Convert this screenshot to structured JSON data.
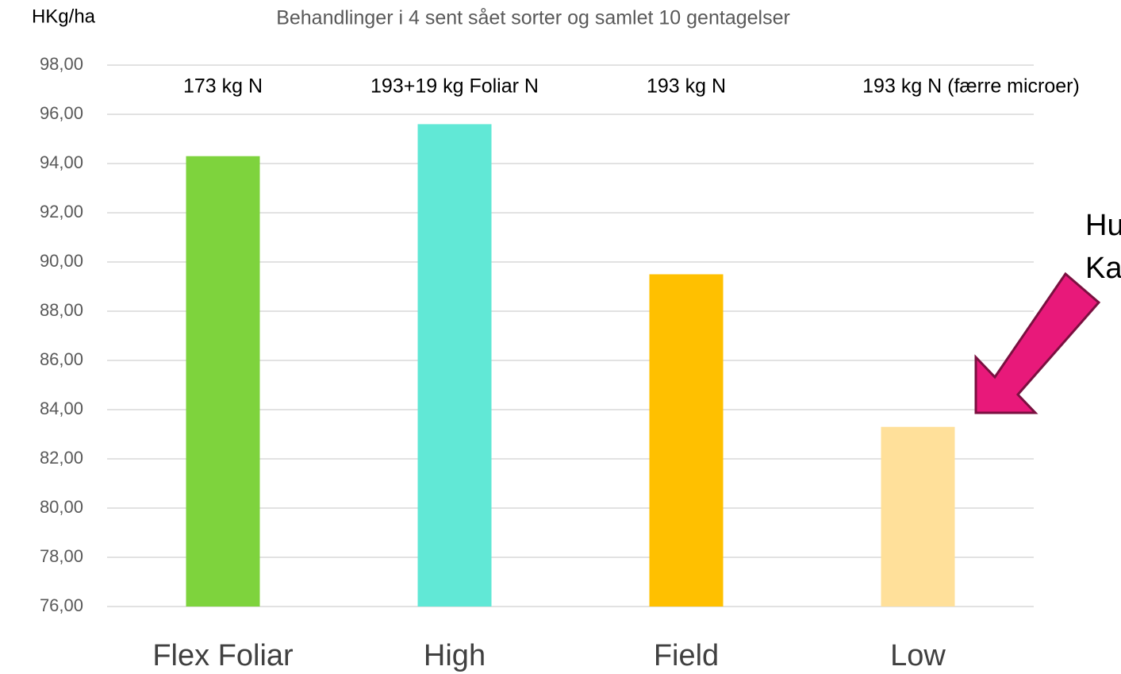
{
  "chart_data": {
    "type": "bar",
    "title": "Behandlinger i 4 sent sået sorter og samlet 10 gentagelser",
    "y_axis_label": "HKg/ha",
    "categories": [
      "Flex Foliar",
      "High",
      "Field",
      "Low"
    ],
    "values": [
      94.3,
      95.6,
      89.5,
      83.3
    ],
    "colors": [
      "#7ed33d",
      "#61e8d6",
      "#ffc000",
      "#ffe09a"
    ],
    "bar_annotations": [
      "173 kg N",
      "193+19 kg Foliar N",
      "193 kg N",
      "193 kg N (færre microer)"
    ],
    "annotation": [
      "Hu",
      "Ka"
    ],
    "ylim": [
      76,
      98
    ],
    "yticks": [
      {
        "value": 76,
        "label": "76,00"
      },
      {
        "value": 78,
        "label": "78,00"
      },
      {
        "value": 80,
        "label": "80,00"
      },
      {
        "value": 82,
        "label": "82,00"
      },
      {
        "value": 84,
        "label": "84,00"
      },
      {
        "value": 86,
        "label": "86,00"
      },
      {
        "value": 88,
        "label": "88,00"
      },
      {
        "value": 90,
        "label": "90,00"
      },
      {
        "value": 92,
        "label": "92,00"
      },
      {
        "value": 94,
        "label": "94,00"
      },
      {
        "value": 96,
        "label": "96,00"
      },
      {
        "value": 98,
        "label": "98,00"
      }
    ],
    "grid": true
  }
}
